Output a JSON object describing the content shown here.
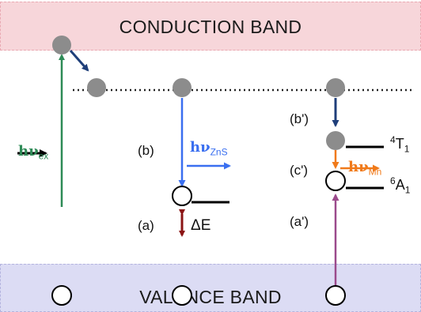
{
  "bands": {
    "conduction": "CONDUCTION BAND",
    "valence": "VALENCE BAND"
  },
  "labels": {
    "a": "(a)",
    "b": "(b)",
    "a_prime": "(a')",
    "b_prime": "(b')",
    "c_prime": "(c')",
    "delta_e": "ΔE"
  },
  "photons": {
    "ex": {
      "symbol": "hν",
      "sub": "ex"
    },
    "zns": {
      "symbol": "hν",
      "sub": "ZnS"
    },
    "mn": {
      "symbol": "hν",
      "sub": "Mn"
    }
  },
  "levels": {
    "t1": {
      "sup": "4",
      "main": "T",
      "sub": "1"
    },
    "a1": {
      "sup": "6",
      "main": "A",
      "sub": "1"
    }
  },
  "colors": {
    "excitation": "#2e8b57",
    "relax": "#1f3f7a",
    "zns_emission": "#3a6ff0",
    "mn_emission": "#f07a1a",
    "hole_transfer": "#9b4a8c",
    "delta_e": "#8b1414",
    "electron": "#8c8c8c"
  }
}
